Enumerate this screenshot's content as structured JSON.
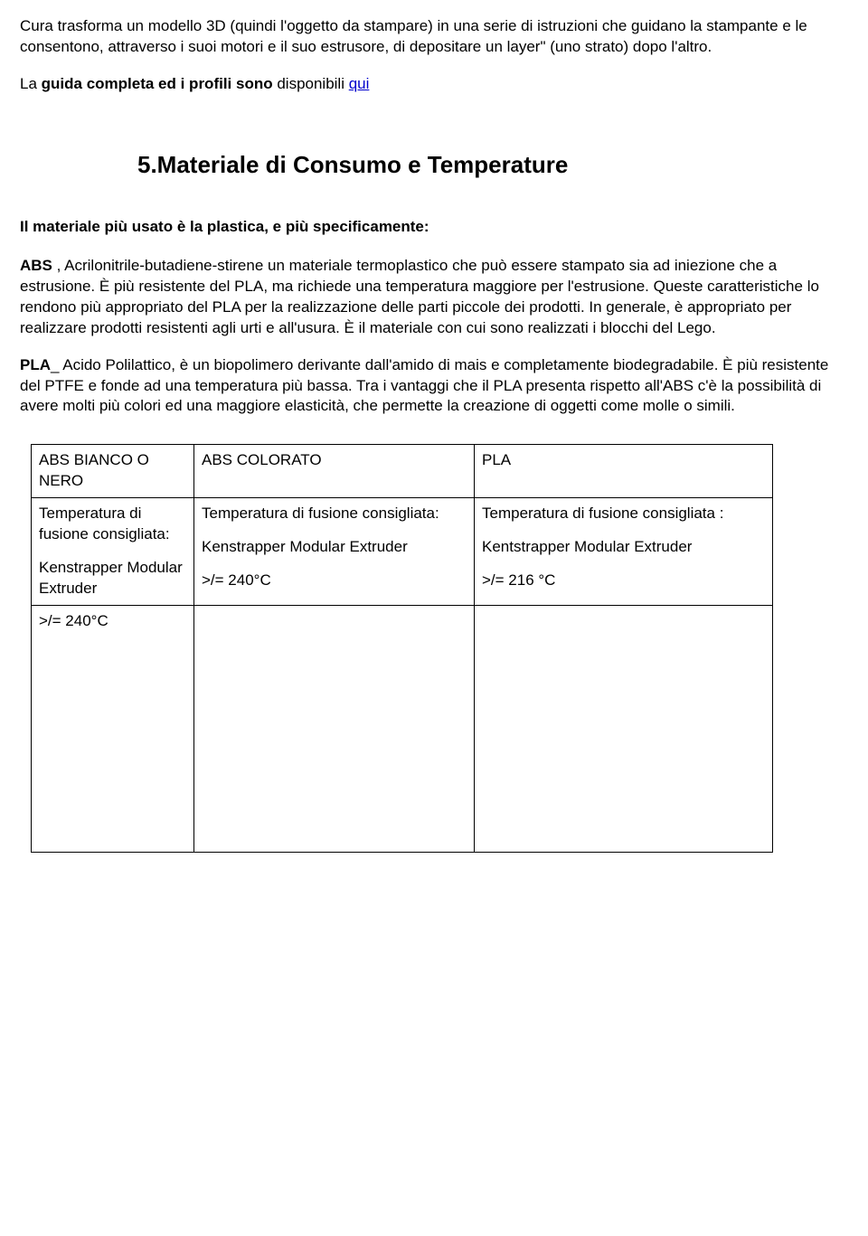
{
  "intro": {
    "p1_a": "Cura trasforma un modello 3D (quindi  l'oggetto da stampare) in una serie di istruzioni che guidano la stampante e le consentono, attraverso i suoi motori e il suo estrusore, di depositare un layer\" (uno strato) dopo l'altro.",
    "p2_a": "La ",
    "p2_b_bold": "guida completa ed i profili sono",
    "p2_c": " disponibili  ",
    "p2_link": "qui"
  },
  "section": {
    "title": "5.Materiale di Consumo e Temperature",
    "subhead": "Il materiale più usato è la plastica, e più specificamente:",
    "abs_label": "ABS",
    "abs_text": " , Acrilonitrile-butadiene-stirene un materiale termoplastico che può essere stampato sia ad iniezione che a estrusione. È più resistente del PLA, ma richiede una temperatura maggiore per l'estrusione. Queste caratteristiche lo rendono più appropriato del PLA per la realizzazione delle parti piccole dei prodotti. In generale, è appropriato per realizzare prodotti resistenti agli urti e all'usura.  È il materiale con cui sono realizzati i blocchi del Lego.",
    "pla_label": "PLA",
    "pla_text": "_ Acido Polilattico, è un biopolimero derivante dall'amido di mais e completamente biodegradabile. È più resistente del PTFE e fonde ad una temperatura più bassa. Tra i vantaggi che il PLA presenta rispetto all'ABS c'è la possibilità di avere molti più colori ed una maggiore elasticità, che permette la creazione di oggetti come molle o simili."
  },
  "table": {
    "h1": "ABS BIANCO O NERO",
    "h2": "ABS COLORATO",
    "h3": "PLA",
    "c1_l1": "Temperatura di fusione consigliata:",
    "c1_l2": "Kenstrapper Modular Extruder",
    "c2_l1": "Temperatura di fusione consigliata:",
    "c2_l2": "Kenstrapper Modular Extruder",
    "c2_l3": ">/= 240°C",
    "c3_l1": "Temperatura di fusione consigliata :",
    "c3_l2": "Kentstrapper Modular Extruder",
    "c3_l3": ">/=  216 °C",
    "r3_c1": ">/= 240°C"
  }
}
